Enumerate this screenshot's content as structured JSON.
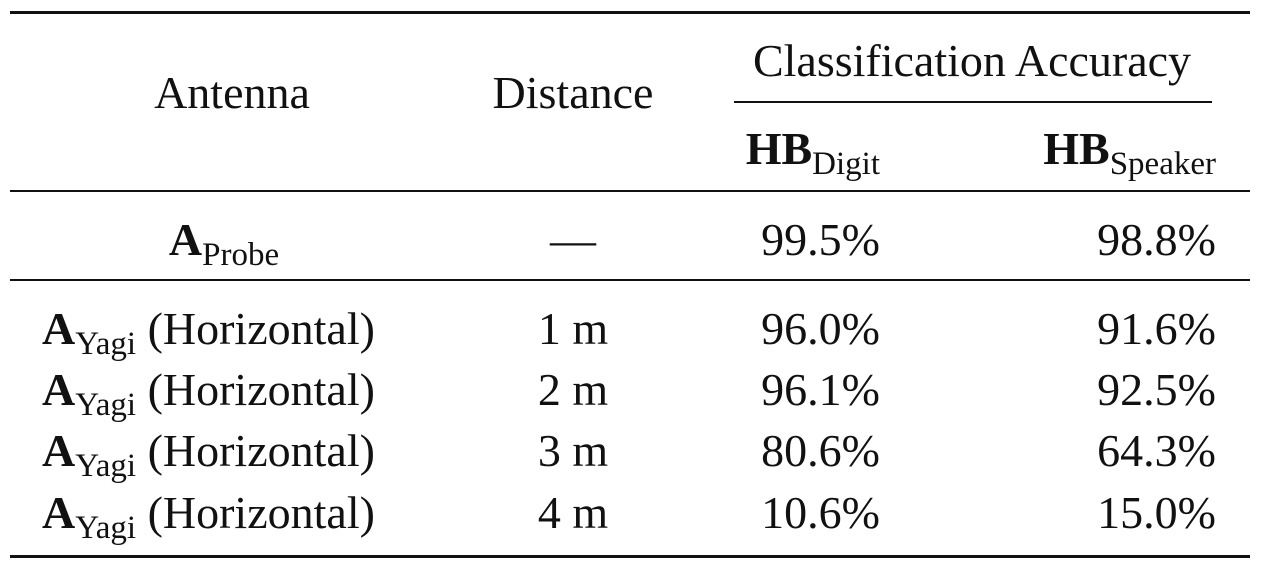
{
  "table": {
    "headers": {
      "antenna": "Antenna",
      "distance": "Distance",
      "accuracy_group": "Classification Accuracy",
      "hb_main": "HB",
      "hb_digit_sub": "Digit",
      "hb_speaker_sub": "Speaker"
    },
    "rows": [
      {
        "antenna_main": "A",
        "antenna_sub": "Probe",
        "antenna_note": "",
        "distance": "—",
        "digit": "99.5%",
        "speaker": "98.8%"
      },
      {
        "antenna_main": "A",
        "antenna_sub": "Yagi",
        "antenna_note": "(Horizontal)",
        "distance": "1 m",
        "digit": "96.0%",
        "speaker": "91.6%"
      },
      {
        "antenna_main": "A",
        "antenna_sub": "Yagi",
        "antenna_note": "(Horizontal)",
        "distance": "2 m",
        "digit": "96.1%",
        "speaker": "92.5%"
      },
      {
        "antenna_main": "A",
        "antenna_sub": "Yagi",
        "antenna_note": "(Horizontal)",
        "distance": "3 m",
        "digit": "80.6%",
        "speaker": "64.3%"
      },
      {
        "antenna_main": "A",
        "antenna_sub": "Yagi",
        "antenna_note": "(Horizontal)",
        "distance": "4 m",
        "digit": "10.6%",
        "speaker": "15.0%"
      }
    ]
  }
}
